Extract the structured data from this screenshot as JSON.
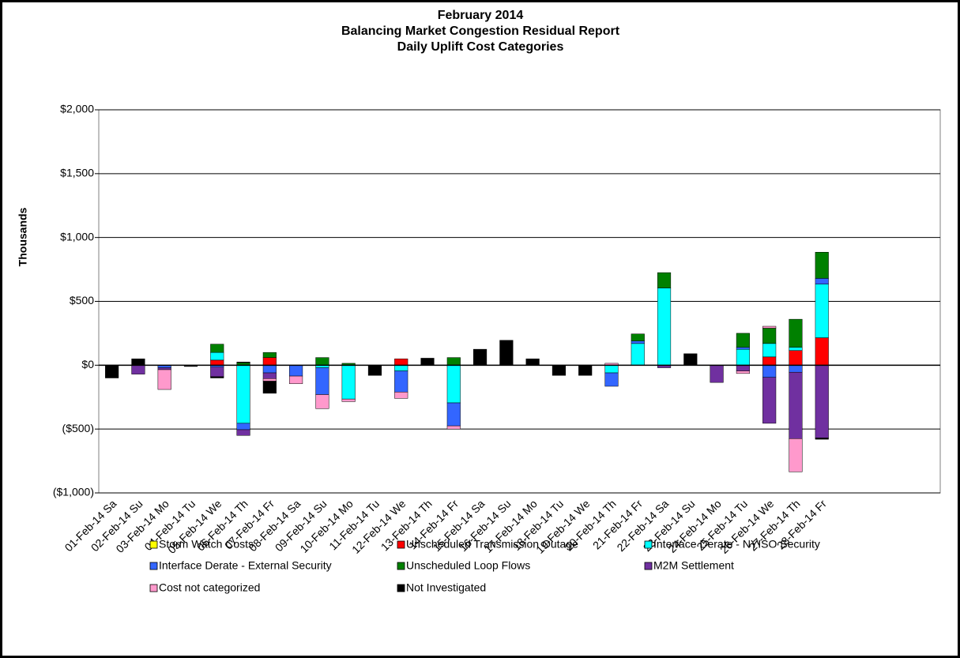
{
  "chart_data": {
    "type": "stacked_bar",
    "title_lines": [
      "February 2014",
      "Balancing Market Congestion Residual Report",
      "Daily Uplift Cost Categories"
    ],
    "y_label": "Thousands",
    "categories": [
      "01-Feb-14 Sa",
      "02-Feb-14 Su",
      "03-Feb-14 Mo",
      "04-Feb-14 Tu",
      "05-Feb-14 We",
      "06-Feb-14 Th",
      "07-Feb-14 Fr",
      "08-Feb-14 Sa",
      "09-Feb-14 Su",
      "10-Feb-14 Mo",
      "11-Feb-14 Tu",
      "12-Feb-14 We",
      "13-Feb-14 Th",
      "14-Feb-14 Fr",
      "15-Feb-14 Sa",
      "16-Feb-14 Su",
      "17-Feb-14 Mo",
      "18-Feb-14 Tu",
      "19-Feb-14 We",
      "20-Feb-14 Th",
      "21-Feb-14 Fr",
      "22-Feb-14 Sa",
      "23-Feb-14 Su",
      "24-Feb-14 Mo",
      "25-Feb-14 Tu",
      "26-Feb-14 We",
      "27-Feb-14 Th",
      "28-Feb-14 Fr",
      null,
      null,
      null,
      null
    ],
    "series": [
      {
        "name": "Storm Watch Costs",
        "color": "#ffff00",
        "values": [
          0,
          0,
          0,
          0,
          0,
          0,
          0,
          0,
          0,
          0,
          0,
          0,
          0,
          0,
          0,
          0,
          0,
          0,
          0,
          0,
          0,
          0,
          0,
          0,
          0,
          0,
          0,
          0,
          null,
          null,
          null,
          null
        ]
      },
      {
        "name": "Unscheduled Transmission Outage",
        "color": "#ff0000",
        "values": [
          0,
          0,
          0,
          0,
          40,
          0,
          60,
          0,
          0,
          0,
          0,
          50,
          0,
          0,
          0,
          0,
          0,
          0,
          0,
          0,
          0,
          0,
          0,
          0,
          0,
          65,
          115,
          215,
          null,
          null,
          null,
          null
        ]
      },
      {
        "name": "Interface Derate - NYISO Security",
        "color": "#00ffff",
        "values": [
          0,
          0,
          0,
          0,
          60,
          -455,
          0,
          0,
          -20,
          -265,
          0,
          -45,
          0,
          -295,
          0,
          0,
          0,
          0,
          0,
          -60,
          170,
          605,
          0,
          0,
          125,
          105,
          25,
          420,
          null,
          null,
          null,
          null
        ]
      },
      {
        "name": "Interface Derate - External Security",
        "color": "#3366ff",
        "values": [
          0,
          0,
          -20,
          0,
          -15,
          -50,
          -60,
          -85,
          -210,
          0,
          0,
          -165,
          0,
          -180,
          0,
          0,
          0,
          0,
          0,
          -105,
          20,
          0,
          0,
          0,
          15,
          -95,
          -55,
          45,
          null,
          null,
          null,
          null
        ]
      },
      {
        "name": "Unscheduled Loop Flows",
        "color": "#008000",
        "values": [
          0,
          0,
          0,
          0,
          65,
          20,
          40,
          0,
          60,
          15,
          0,
          0,
          0,
          60,
          0,
          0,
          0,
          0,
          0,
          0,
          55,
          120,
          0,
          0,
          110,
          120,
          220,
          205,
          null,
          null,
          null,
          null
        ]
      },
      {
        "name": "M2M Settlement",
        "color": "#7030a0",
        "values": [
          0,
          -70,
          -15,
          0,
          -75,
          -45,
          -45,
          0,
          0,
          0,
          0,
          0,
          0,
          0,
          0,
          0,
          0,
          0,
          0,
          0,
          0,
          -20,
          0,
          -135,
          -45,
          -360,
          -520,
          -570,
          null,
          null,
          null,
          null
        ]
      },
      {
        "name": "Cost not categorized",
        "color": "#ff99cc",
        "values": [
          0,
          0,
          -155,
          0,
          0,
          0,
          -20,
          -60,
          -110,
          -20,
          0,
          -50,
          0,
          -25,
          0,
          0,
          0,
          0,
          0,
          15,
          0,
          0,
          0,
          0,
          -20,
          15,
          -260,
          0,
          null,
          null,
          null,
          null
        ]
      },
      {
        "name": "Not Investigated",
        "color": "#000000",
        "values": [
          -100,
          50,
          0,
          -10,
          -10,
          5,
          -95,
          0,
          0,
          0,
          -80,
          0,
          55,
          0,
          125,
          195,
          50,
          -80,
          -80,
          0,
          0,
          0,
          90,
          0,
          0,
          0,
          0,
          -10,
          null,
          null,
          null,
          null
        ]
      }
    ],
    "ylim": [
      -1000,
      2000
    ],
    "yticks": [
      {
        "value": -1000,
        "label": "($1,000)"
      },
      {
        "value": -500,
        "label": "($500)"
      },
      {
        "value": 0,
        "label": "$0"
      },
      {
        "value": 500,
        "label": "$500"
      },
      {
        "value": 1000,
        "label": "$1,000"
      },
      {
        "value": 1500,
        "label": "$1,500"
      },
      {
        "value": 2000,
        "label": "$2,000"
      }
    ],
    "grid": true,
    "negative_tick_color": "#ff0000",
    "legend": "bottom"
  }
}
